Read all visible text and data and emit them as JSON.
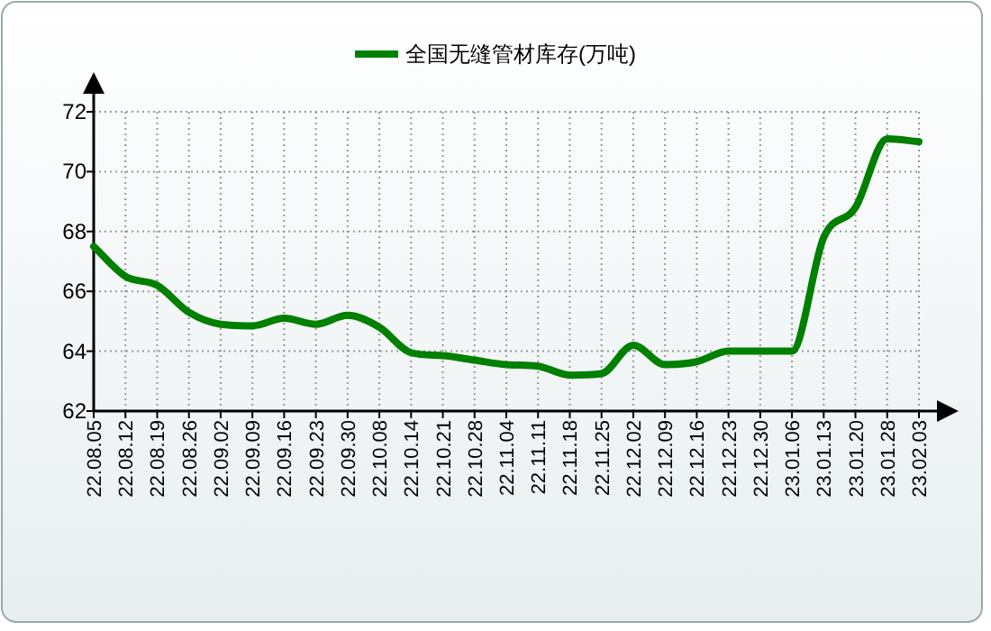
{
  "chart_data": {
    "type": "line",
    "categories": [
      "22.08.05",
      "22.08.12",
      "22.08.19",
      "22.08.26",
      "22.09.02",
      "22.09.09",
      "22.09.16",
      "22.09.23",
      "22.09.30",
      "22.10.08",
      "22.10.14",
      "22.10.21",
      "22.10.28",
      "22.11.04",
      "22.11.11",
      "22.11.18",
      "22.11.25",
      "22.12.02",
      "22.12.09",
      "22.12.16",
      "22.12.23",
      "22.12.30",
      "23.01.06",
      "23.01.13",
      "23.01.20",
      "23.01.28",
      "23.02.03"
    ],
    "series": [
      {
        "name": "全国无缝管材库存(万吨)",
        "color": "#008000",
        "values": [
          67.5,
          66.5,
          66.2,
          65.3,
          64.9,
          64.85,
          65.1,
          64.9,
          65.2,
          64.8,
          63.95,
          63.85,
          63.7,
          63.55,
          63.5,
          63.2,
          63.25,
          64.2,
          63.55,
          63.65,
          64.0,
          64.0,
          64.0,
          67.8,
          68.8,
          71.1,
          71.0
        ]
      }
    ],
    "ylim": [
      62,
      72
    ],
    "yticks": [
      62,
      64,
      66,
      68,
      70,
      72
    ],
    "grid": true,
    "legend": "top",
    "line_style": "solid"
  }
}
